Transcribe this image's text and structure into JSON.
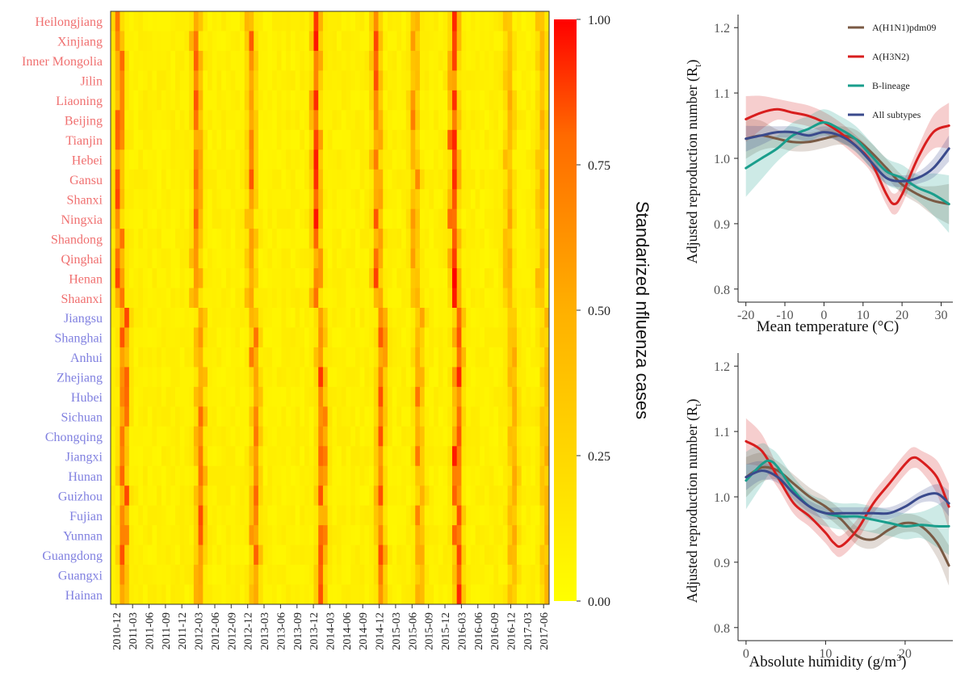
{
  "colors": {
    "north_label": "#f07070",
    "south_label": "#8080e0",
    "scale_low": "#ffff00",
    "scale_mid": "#ffa800",
    "scale_high": "#ff0000",
    "h1n1": "#7a5a44",
    "h3n2": "#d81e1e",
    "blineage": "#1a9e8c",
    "all": "#3a4a8c"
  },
  "chart_data": [
    {
      "type": "heatmap",
      "title": "",
      "rows": [
        "Heilongjiang",
        "Xinjiang",
        "Inner Mongolia",
        "Jilin",
        "Liaoning",
        "Beijing",
        "Tianjin",
        "Hebei",
        "Gansu",
        "Shanxi",
        "Ningxia",
        "Shandong",
        "Qinghai",
        "Henan",
        "Shaanxi",
        "Jiangsu",
        "Shanghai",
        "Anhui",
        "Zhejiang",
        "Hubei",
        "Sichuan",
        "Chongqing",
        "Jiangxi",
        "Hunan",
        "Guizhou",
        "Fujian",
        "Yunnan",
        "Guangdong",
        "Guangxi",
        "Hainan"
      ],
      "north_count": 15,
      "x_tick_labels": [
        "2010-12",
        "2011-03",
        "2011-06",
        "2011-09",
        "2011-12",
        "2012-03",
        "2012-06",
        "2012-09",
        "2012-12",
        "2013-03",
        "2013-06",
        "2013-09",
        "2013-12",
        "2014-03",
        "2014-06",
        "2014-09",
        "2014-12",
        "2015-03",
        "2015-06",
        "2015-09",
        "2015-12",
        "2016-03",
        "2016-06",
        "2016-09",
        "2016-12",
        "2017-03",
        "2017-06"
      ],
      "colorbar": {
        "title": "Standarized nfluenza cases",
        "ticks": [
          "0.00",
          "0.25",
          "0.50",
          "0.75",
          "1.00"
        ],
        "range": [
          0,
          1
        ]
      },
      "season_peaks": [
        {
          "date": "2011-01",
          "strength": 0.8
        },
        {
          "date": "2012-03",
          "strength": 0.75
        },
        {
          "date": "2013-01",
          "strength": 0.7
        },
        {
          "date": "2014-01",
          "strength": 0.85
        },
        {
          "date": "2014-12",
          "strength": 0.8
        },
        {
          "date": "2015-07",
          "strength": 0.6
        },
        {
          "date": "2016-02",
          "strength": 1.0
        },
        {
          "date": "2016-12",
          "strength": 0.5
        },
        {
          "date": "2017-06",
          "strength": 0.45
        }
      ]
    },
    {
      "type": "line",
      "xlabel": "Mean temperature (°C)",
      "ylabel": "Adjusted reproduction number (R",
      "ylabel_sub": "t",
      "ylabel_close": ")",
      "x_ticks": [
        "-20",
        "-10",
        "0",
        "10",
        "20",
        "30"
      ],
      "y_ticks": [
        "0.8",
        "0.9",
        "1.0",
        "1.1",
        "1.2"
      ],
      "xlim": [
        -22,
        33
      ],
      "ylim": [
        0.78,
        1.22
      ],
      "legend": [
        "A(H1N1)pdm09",
        "A(H3N2)",
        "B-lineage",
        "All subtypes"
      ],
      "legend_position": "top-right",
      "series": [
        {
          "name": "A(H1N1)pdm09",
          "x": [
            -20,
            -16,
            -12,
            -8,
            -4,
            0,
            4,
            8,
            12,
            16,
            20,
            24,
            28,
            32
          ],
          "y": [
            1.03,
            1.035,
            1.03,
            1.025,
            1.025,
            1.03,
            1.035,
            1.03,
            1.01,
            0.985,
            0.96,
            0.945,
            0.935,
            0.93
          ]
        },
        {
          "name": "A(H3N2)",
          "x": [
            -20,
            -16,
            -12,
            -8,
            -4,
            0,
            4,
            8,
            12,
            16,
            18,
            20,
            24,
            28,
            32
          ],
          "y": [
            1.06,
            1.07,
            1.075,
            1.07,
            1.065,
            1.055,
            1.04,
            1.02,
            0.995,
            0.945,
            0.93,
            0.945,
            1.0,
            1.04,
            1.05
          ]
        },
        {
          "name": "B-lineage",
          "x": [
            -20,
            -16,
            -12,
            -8,
            -4,
            0,
            4,
            8,
            12,
            16,
            20,
            24,
            28,
            32
          ],
          "y": [
            0.985,
            1.0,
            1.015,
            1.035,
            1.045,
            1.055,
            1.045,
            1.03,
            1.005,
            0.98,
            0.97,
            0.955,
            0.945,
            0.93
          ]
        },
        {
          "name": "All subtypes",
          "x": [
            -20,
            -16,
            -12,
            -8,
            -4,
            0,
            4,
            8,
            12,
            16,
            20,
            24,
            28,
            32
          ],
          "y": [
            1.03,
            1.035,
            1.04,
            1.04,
            1.035,
            1.04,
            1.035,
            1.02,
            0.995,
            0.97,
            0.965,
            0.97,
            0.985,
            1.015
          ]
        }
      ]
    },
    {
      "type": "line",
      "xlabel": "Absolute humidity (g/m",
      "xlabel_sup": "3",
      "xlabel_close": ")",
      "ylabel": "Adjusted reproduction number (R",
      "ylabel_sub": "t",
      "ylabel_close": ")",
      "x_ticks": [
        "0",
        "10",
        "20"
      ],
      "y_ticks": [
        "0.8",
        "0.9",
        "1.0",
        "1.1",
        "1.2"
      ],
      "xlim": [
        -1,
        26
      ],
      "ylim": [
        0.78,
        1.22
      ],
      "series": [
        {
          "name": "A(H1N1)pdm09",
          "x": [
            0,
            2,
            4,
            6,
            8,
            10,
            12,
            14,
            16,
            18,
            20,
            22,
            24,
            25.5
          ],
          "y": [
            1.03,
            1.045,
            1.04,
            1.02,
            1.0,
            0.985,
            0.965,
            0.94,
            0.935,
            0.95,
            0.96,
            0.955,
            0.93,
            0.895
          ]
        },
        {
          "name": "A(H3N2)",
          "x": [
            0,
            2,
            4,
            6,
            8,
            10,
            11,
            12,
            14,
            16,
            18,
            20,
            21,
            22,
            24,
            25.5
          ],
          "y": [
            1.085,
            1.07,
            1.03,
            0.99,
            0.97,
            0.945,
            0.93,
            0.925,
            0.95,
            0.99,
            1.02,
            1.05,
            1.06,
            1.055,
            1.03,
            0.985
          ]
        },
        {
          "name": "B-lineage",
          "x": [
            0,
            2,
            3,
            4,
            6,
            8,
            10,
            12,
            14,
            16,
            18,
            20,
            22,
            24,
            25.5
          ],
          "y": [
            1.025,
            1.05,
            1.055,
            1.045,
            1.01,
            0.985,
            0.975,
            0.97,
            0.97,
            0.965,
            0.96,
            0.955,
            0.957,
            0.955,
            0.955
          ]
        },
        {
          "name": "All subtypes",
          "x": [
            0,
            2,
            4,
            6,
            8,
            10,
            12,
            14,
            16,
            18,
            20,
            22,
            24,
            25.5
          ],
          "y": [
            1.03,
            1.04,
            1.03,
            1.005,
            0.985,
            0.975,
            0.975,
            0.975,
            0.975,
            0.975,
            0.985,
            1.0,
            1.005,
            0.99
          ]
        }
      ]
    }
  ]
}
